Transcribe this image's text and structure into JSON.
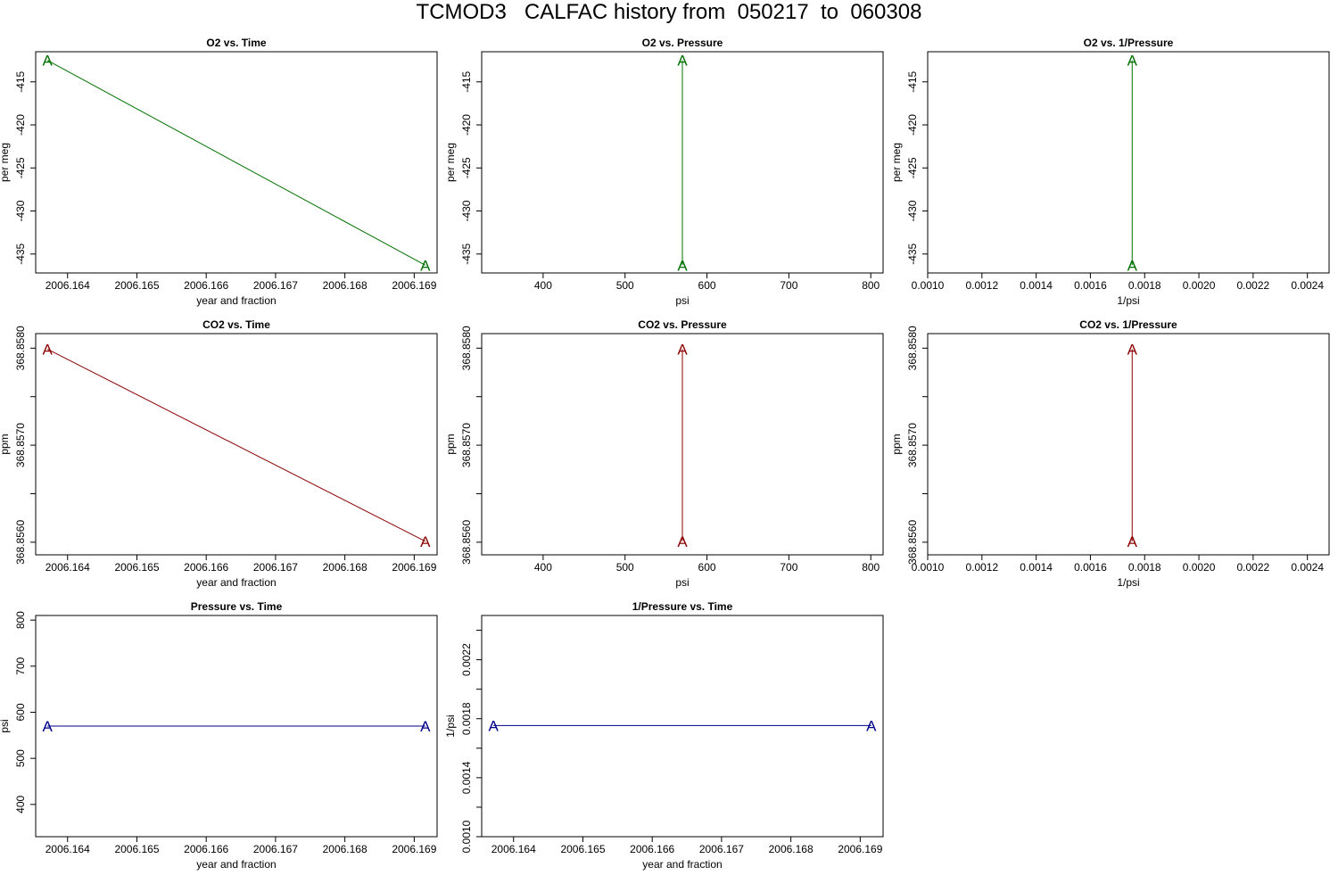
{
  "page": {
    "title": "TCMOD3   CALFAC history from  050217  to  060308"
  },
  "chart_data": [
    {
      "type": "line",
      "title": "O2 vs. Time",
      "xlabel": "year and fraction",
      "ylabel": "per meg",
      "xlim": [
        2006.16354,
        2006.16933
      ],
      "ylim": [
        -437.2,
        -411.5
      ],
      "xticks": [
        2006.164,
        2006.165,
        2006.166,
        2006.167,
        2006.168,
        2006.169
      ],
      "xtick_labels": [
        "2006.164",
        "2006.165",
        "2006.166",
        "2006.167",
        "2006.168",
        "2006.169"
      ],
      "yticks": [
        -435,
        -430,
        -425,
        -420,
        -415
      ],
      "ytick_labels": [
        "-435",
        "-430",
        "-425",
        "-420",
        "-415"
      ],
      "series": [
        {
          "marker": "A",
          "color": "#007000",
          "x": [
            2006.16371,
            2006.16916
          ],
          "y": [
            -412.5,
            -436.3
          ]
        }
      ]
    },
    {
      "type": "line",
      "title": "O2 vs. Pressure",
      "xlabel": "psi",
      "ylabel": "per meg",
      "xlim": [
        325,
        815
      ],
      "ylim": [
        -437.2,
        -411.5
      ],
      "xticks": [
        400,
        500,
        600,
        700,
        800
      ],
      "xtick_labels": [
        "400",
        "500",
        "600",
        "700",
        "800"
      ],
      "yticks": [
        -435,
        -430,
        -425,
        -420,
        -415
      ],
      "ytick_labels": [
        "-435",
        "-430",
        "-425",
        "-420",
        "-415"
      ],
      "series": [
        {
          "marker": "A",
          "color": "#007000",
          "x": [
            570,
            570
          ],
          "y": [
            -412.5,
            -436.3
          ]
        }
      ]
    },
    {
      "type": "line",
      "title": "O2 vs. 1/Pressure",
      "xlabel": "1/psi",
      "ylabel": "per meg",
      "xlim": [
        0.001,
        0.00248
      ],
      "ylim": [
        -437.2,
        -411.5
      ],
      "xticks": [
        0.001,
        0.0012,
        0.0014,
        0.0016,
        0.0018,
        0.002,
        0.0022,
        0.0024
      ],
      "xtick_labels": [
        "0.0010",
        "0.0012",
        "0.0014",
        "0.0016",
        "0.0018",
        "0.0020",
        "0.0022",
        "0.0024"
      ],
      "yticks": [
        -435,
        -430,
        -425,
        -420,
        -415
      ],
      "ytick_labels": [
        "-435",
        "-430",
        "-425",
        "-420",
        "-415"
      ],
      "series": [
        {
          "marker": "A",
          "color": "#007000",
          "x": [
            0.001754,
            0.001754
          ],
          "y": [
            -412.5,
            -436.3
          ]
        }
      ]
    },
    {
      "type": "line",
      "title": "CO2 vs. Time",
      "xlabel": "year and fraction",
      "ylabel": "ppm",
      "xlim": [
        2006.16354,
        2006.16933
      ],
      "ylim": [
        368.85587,
        368.85815
      ],
      "xticks": [
        2006.164,
        2006.165,
        2006.166,
        2006.167,
        2006.168,
        2006.169
      ],
      "xtick_labels": [
        "2006.164",
        "2006.165",
        "2006.166",
        "2006.167",
        "2006.168",
        "2006.169"
      ],
      "yticks": [
        368.856,
        368.8565,
        368.857,
        368.8575,
        368.858
      ],
      "ytick_labels": [
        "368.8560",
        "",
        "368.8570",
        "",
        "368.8580"
      ],
      "series": [
        {
          "marker": "A",
          "color": "#8b0000",
          "x": [
            2006.16371,
            2006.16916
          ],
          "y": [
            368.85799,
            368.85601
          ]
        }
      ]
    },
    {
      "type": "line",
      "title": "CO2 vs. Pressure",
      "xlabel": "psi",
      "ylabel": "ppm",
      "xlim": [
        325,
        815
      ],
      "ylim": [
        368.85587,
        368.85815
      ],
      "xticks": [
        400,
        500,
        600,
        700,
        800
      ],
      "xtick_labels": [
        "400",
        "500",
        "600",
        "700",
        "800"
      ],
      "yticks": [
        368.856,
        368.8565,
        368.857,
        368.8575,
        368.858
      ],
      "ytick_labels": [
        "368.8560",
        "",
        "368.8570",
        "",
        "368.8580"
      ],
      "series": [
        {
          "marker": "A",
          "color": "#8b0000",
          "x": [
            570,
            570
          ],
          "y": [
            368.85799,
            368.85601
          ]
        }
      ]
    },
    {
      "type": "line",
      "title": "CO2 vs. 1/Pressure",
      "xlabel": "1/psi",
      "ylabel": "ppm",
      "xlim": [
        0.001,
        0.00248
      ],
      "ylim": [
        368.85587,
        368.85815
      ],
      "xticks": [
        0.001,
        0.0012,
        0.0014,
        0.0016,
        0.0018,
        0.002,
        0.0022,
        0.0024
      ],
      "xtick_labels": [
        "0.0010",
        "0.0012",
        "0.0014",
        "0.0016",
        "0.0018",
        "0.0020",
        "0.0022",
        "0.0024"
      ],
      "yticks": [
        368.856,
        368.8565,
        368.857,
        368.8575,
        368.858
      ],
      "ytick_labels": [
        "368.8560",
        "",
        "368.8570",
        "",
        "368.8580"
      ],
      "series": [
        {
          "marker": "A",
          "color": "#8b0000",
          "x": [
            0.001754,
            0.001754
          ],
          "y": [
            368.85799,
            368.85601
          ]
        }
      ]
    },
    {
      "type": "line",
      "title": "Pressure vs. Time",
      "xlabel": "year and fraction",
      "ylabel": "psi",
      "xlim": [
        2006.16354,
        2006.16933
      ],
      "ylim": [
        330,
        810
      ],
      "xticks": [
        2006.164,
        2006.165,
        2006.166,
        2006.167,
        2006.168,
        2006.169
      ],
      "xtick_labels": [
        "2006.164",
        "2006.165",
        "2006.166",
        "2006.167",
        "2006.168",
        "2006.169"
      ],
      "yticks": [
        400,
        500,
        600,
        700,
        800
      ],
      "ytick_labels": [
        "400",
        "500",
        "600",
        "700",
        "800"
      ],
      "series": [
        {
          "marker": "A",
          "color": "#00008b",
          "x": [
            2006.16371,
            2006.16916
          ],
          "y": [
            570,
            570
          ]
        }
      ]
    },
    {
      "type": "line",
      "title": "1/Pressure vs. Time",
      "xlabel": "year and fraction",
      "ylabel": "1/psi",
      "xlim": [
        2006.16354,
        2006.16933
      ],
      "ylim": [
        0.001,
        0.0025
      ],
      "xticks": [
        2006.164,
        2006.165,
        2006.166,
        2006.167,
        2006.168,
        2006.169
      ],
      "xtick_labels": [
        "2006.164",
        "2006.165",
        "2006.166",
        "2006.167",
        "2006.168",
        "2006.169"
      ],
      "yticks": [
        0.001,
        0.0012,
        0.0014,
        0.0016,
        0.0018,
        0.002,
        0.0022,
        0.0024
      ],
      "ytick_labels": [
        "0.0010",
        "",
        "0.0014",
        "",
        "0.0018",
        "",
        "0.0022",
        ""
      ],
      "series": [
        {
          "marker": "A",
          "color": "#00008b",
          "x": [
            2006.16371,
            2006.16916
          ],
          "y": [
            0.001754,
            0.001754
          ]
        }
      ]
    }
  ]
}
